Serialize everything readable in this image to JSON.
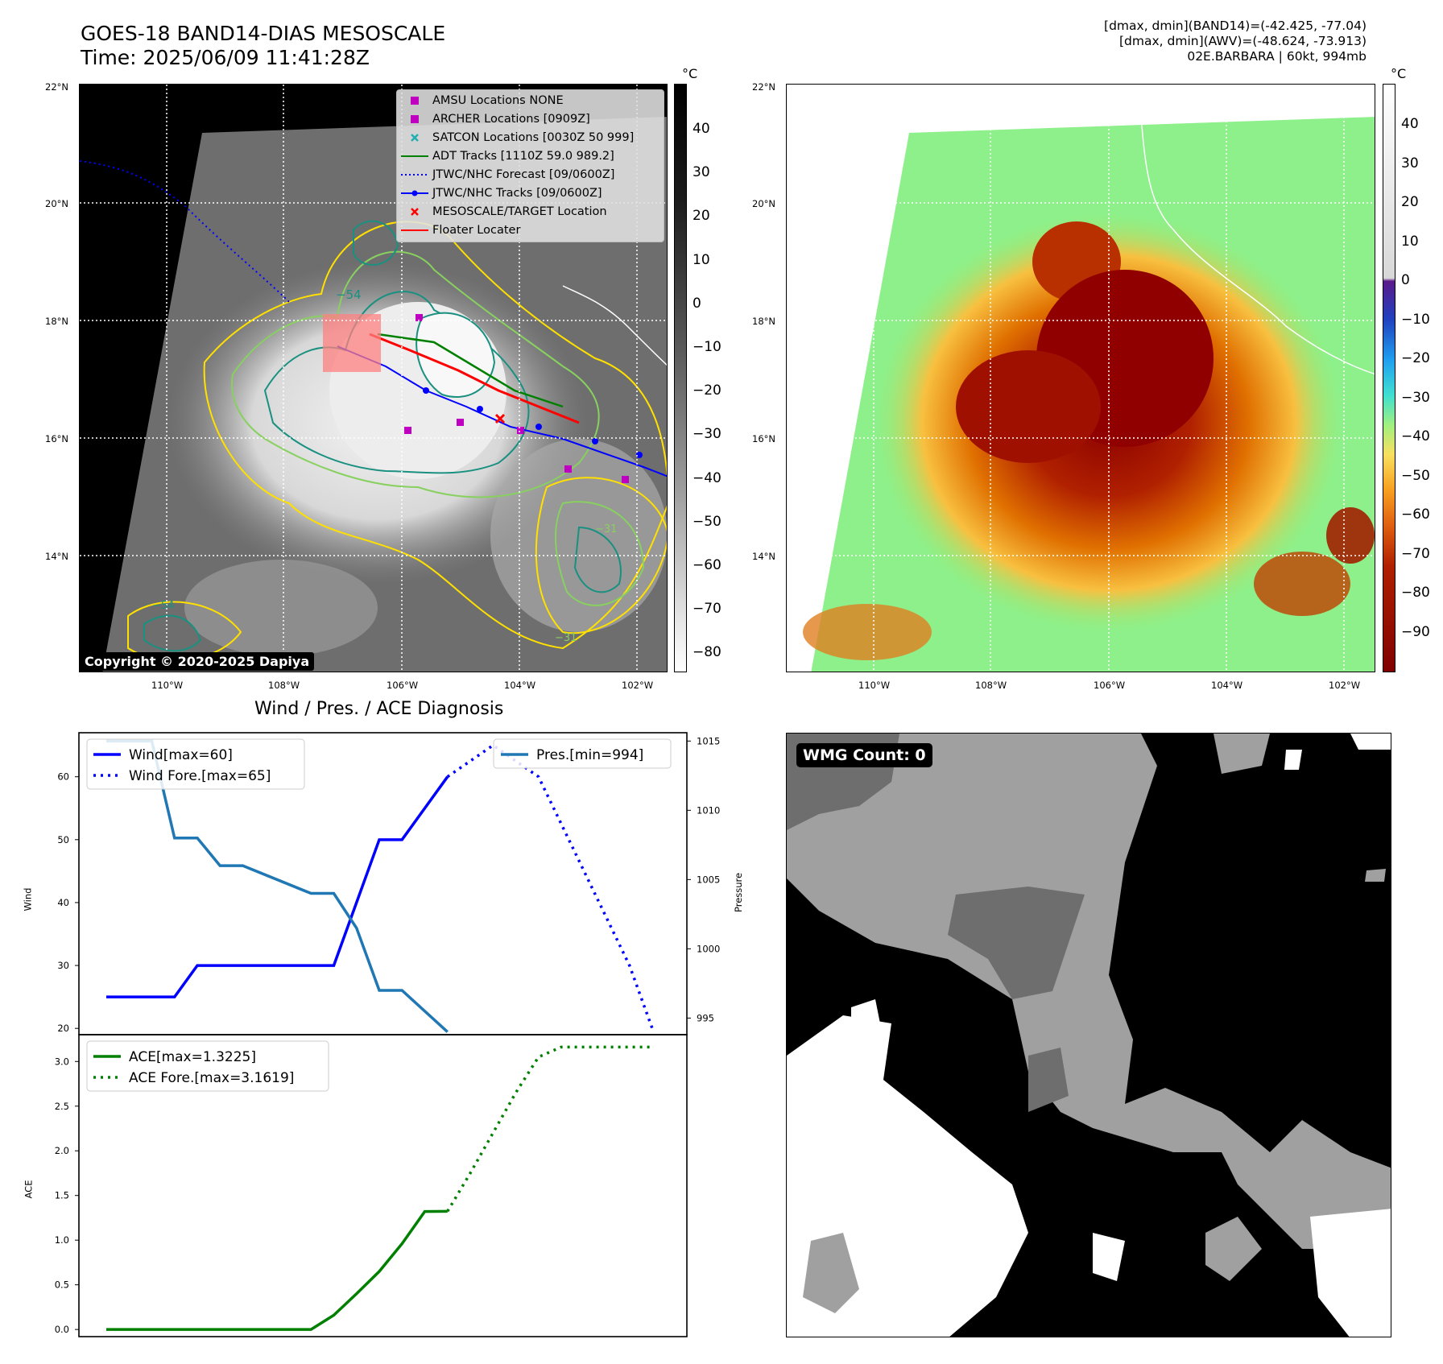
{
  "header": {
    "title_line1": "GOES-18 BAND14-DIAS MESOSCALE",
    "title_line2": "Time: 2025/06/09 11:41:28Z",
    "info_line1": "[dmax, dmin](BAND14)=(-42.425, -77.04)",
    "info_line2": "[dmax, dmin](AWV)=(-48.624, -73.913)",
    "info_line3": "02E.BARBARA | 60kt, 994mb"
  },
  "map_axes": {
    "lat_ticks": [
      "22°N",
      "20°N",
      "18°N",
      "16°N",
      "14°N"
    ],
    "lon_ticks": [
      "110°W",
      "108°W",
      "106°W",
      "104°W",
      "102°W"
    ]
  },
  "legend": {
    "items": [
      {
        "label": "AMSU Locations NONE",
        "symbol": "square",
        "color": "#c000c0"
      },
      {
        "label": "ARCHER Locations [0909Z]",
        "symbol": "square",
        "color": "#c000c0"
      },
      {
        "label": "SATCON Locations [0030Z 50 999]",
        "symbol": "x",
        "color": "#20b0b0"
      },
      {
        "label": "ADT Tracks [1110Z 59.0 989.2]",
        "symbol": "line",
        "color": "#008000"
      },
      {
        "label": "JTWC/NHC Forecast [09/0600Z]",
        "symbol": "dotted",
        "color": "#0000ff"
      },
      {
        "label": "JTWC/NHC Tracks [09/0600Z]",
        "symbol": "line-dot",
        "color": "#0000ff"
      },
      {
        "label": "MESOSCALE/TARGET Location",
        "symbol": "x",
        "color": "#ff0000"
      },
      {
        "label": "Floater Locater",
        "symbol": "line",
        "color": "#ff0000"
      }
    ]
  },
  "copyright": "Copyright © 2020-2025 Dapiya",
  "colorbar_gray": {
    "unit": "°C",
    "ticks": [
      "40",
      "30",
      "20",
      "10",
      "0",
      "−10",
      "−20",
      "−30",
      "−40",
      "−50",
      "−60",
      "−70",
      "−80"
    ]
  },
  "colorbar_color": {
    "unit": "°C",
    "ticks": [
      "40",
      "30",
      "20",
      "10",
      "0",
      "−10",
      "−20",
      "−30",
      "−40",
      "−50",
      "−60",
      "−70",
      "−80",
      "−90"
    ]
  },
  "contour_labels": [
    "−54",
    "−54",
    "−31",
    "−31",
    "−54",
    "−31"
  ],
  "wmg": {
    "label": "WMG Count: 0"
  },
  "chart_data": [
    {
      "type": "line",
      "title": "Wind / Pres. / ACE Diagnosis",
      "ylabel": "Wind",
      "ylabel_right": "Pressure",
      "ylim": [
        19,
        67
      ],
      "ylim_right": [
        993.8,
        1015.6
      ],
      "yticks": [
        20,
        30,
        40,
        50,
        60
      ],
      "yticks_right": [
        995,
        1000,
        1005,
        1010,
        1015
      ],
      "x": [
        0,
        1,
        2,
        3,
        4,
        5,
        6,
        7,
        8,
        9,
        10,
        11,
        12,
        13,
        14,
        15,
        16,
        17,
        18,
        19,
        20,
        21,
        22,
        23,
        24
      ],
      "series": [
        {
          "name": "Wind[max=60]",
          "style": "solid",
          "color": "#0000ff",
          "axis": "left",
          "x": [
            0,
            3,
            4,
            9,
            10,
            12,
            13,
            14,
            15
          ],
          "values": [
            25,
            25,
            30,
            30,
            30,
            50,
            50,
            55,
            60
          ]
        },
        {
          "name": "Wind Fore.[max=65]",
          "style": "dotted",
          "color": "#0000ff",
          "axis": "left",
          "x": [
            15,
            17,
            19,
            21,
            23,
            24
          ],
          "values": [
            60,
            65,
            60,
            45,
            30,
            20
          ]
        },
        {
          "name": "Pres.[min=994]",
          "style": "solid",
          "color": "#1f77b4",
          "axis": "right",
          "x": [
            0,
            2,
            3,
            4,
            5,
            6,
            9,
            10,
            11,
            12,
            13,
            15
          ],
          "values": [
            1015,
            1015,
            1008,
            1008,
            1006,
            1006,
            1004,
            1004,
            1001.5,
            997,
            997,
            994
          ]
        }
      ],
      "legend_left": [
        "Wind[max=60]",
        "Wind Fore.[max=65]"
      ],
      "legend_right": [
        "Pres.[min=994]"
      ]
    },
    {
      "type": "line",
      "ylabel": "ACE",
      "ylim": [
        -0.08,
        3.3
      ],
      "yticks": [
        0.0,
        0.5,
        1.0,
        1.5,
        2.0,
        2.5,
        3.0
      ],
      "ytick_labels": [
        "0.0",
        "0.5",
        "1.0",
        "1.5",
        "2.0",
        "2.5",
        "3.0"
      ],
      "series": [
        {
          "name": "ACE[max=1.3225]",
          "style": "solid",
          "color": "#008000",
          "x": [
            0,
            9,
            10,
            11,
            12,
            13,
            14,
            15
          ],
          "values": [
            0,
            0,
            0.16,
            0.4,
            0.65,
            0.96,
            1.32,
            1.3225
          ]
        },
        {
          "name": "ACE Fore.[max=3.1619]",
          "style": "dotted",
          "color": "#008000",
          "x": [
            15,
            16,
            17,
            18,
            19,
            20,
            21,
            22,
            23,
            24
          ],
          "values": [
            1.3225,
            1.75,
            2.2,
            2.65,
            3.05,
            3.1619,
            3.1619,
            3.1619,
            3.1619,
            3.1619
          ]
        }
      ]
    }
  ]
}
